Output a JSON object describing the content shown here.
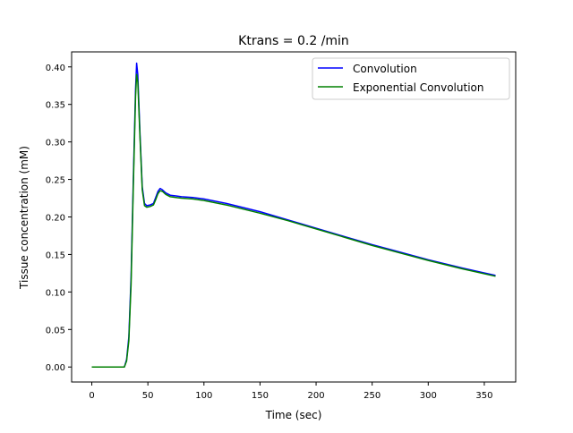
{
  "chart_data": {
    "type": "line",
    "title": "Ktrans = 0.2 /min",
    "xlabel": "Time (sec)",
    "ylabel": "Tissue concentration (mM)",
    "xlim": [
      -18,
      378
    ],
    "ylim": [
      -0.02,
      0.42
    ],
    "xticks": [
      0,
      50,
      100,
      150,
      200,
      250,
      300,
      350
    ],
    "yticks": [
      "0.00",
      "0.05",
      "0.10",
      "0.15",
      "0.20",
      "0.25",
      "0.30",
      "0.35",
      "0.40"
    ],
    "grid": false,
    "legend": "top-right",
    "x": [
      0,
      10,
      20,
      29,
      31,
      33,
      35,
      37,
      39,
      40,
      41,
      43,
      45,
      47,
      49,
      52,
      55,
      57,
      59,
      61,
      63,
      66,
      70,
      75,
      80,
      90,
      100,
      120,
      150,
      175,
      200,
      225,
      250,
      275,
      300,
      330,
      360
    ],
    "series": [
      {
        "name": "Convolution",
        "color": "#0000ff",
        "values": [
          0,
          0,
          0,
          0,
          0.01,
          0.04,
          0.12,
          0.25,
          0.37,
          0.405,
          0.39,
          0.31,
          0.24,
          0.218,
          0.215,
          0.216,
          0.218,
          0.226,
          0.234,
          0.238,
          0.236,
          0.232,
          0.229,
          0.228,
          0.227,
          0.226,
          0.224,
          0.218,
          0.207,
          0.196,
          0.185,
          0.174,
          0.163,
          0.153,
          0.143,
          0.132,
          0.122
        ]
      },
      {
        "name": "Exponential Convolution",
        "color": "#008000",
        "values": [
          0,
          0,
          0,
          0,
          0.008,
          0.035,
          0.11,
          0.24,
          0.36,
          0.39,
          0.38,
          0.305,
          0.236,
          0.215,
          0.213,
          0.214,
          0.216,
          0.223,
          0.231,
          0.235,
          0.234,
          0.23,
          0.227,
          0.226,
          0.225,
          0.224,
          0.222,
          0.216,
          0.205,
          0.195,
          0.184,
          0.173,
          0.162,
          0.152,
          0.142,
          0.131,
          0.121
        ]
      }
    ]
  }
}
